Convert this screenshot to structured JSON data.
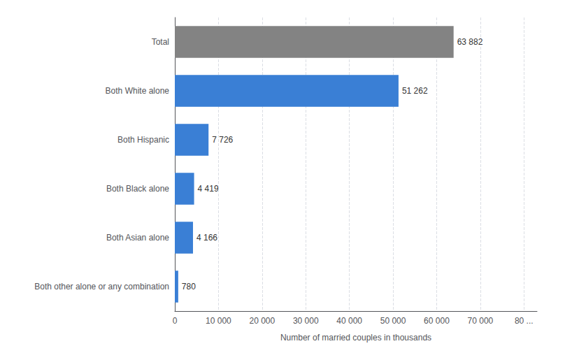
{
  "chart_data": {
    "type": "bar",
    "orientation": "horizontal",
    "xlabel": "Number of married couples in thousands",
    "categories": [
      "Both other alone or any combination",
      "Both Asian alone",
      "Both Black alone",
      "Both Hispanic",
      "Both White alone",
      "Total"
    ],
    "values": [
      780,
      4166,
      4419,
      7726,
      51262,
      63882
    ],
    "value_labels": [
      "780",
      "4 166",
      "4 419",
      "7 726",
      "51 262",
      "63 882"
    ],
    "colors": [
      "#3a7fd5",
      "#3a7fd5",
      "#3a7fd5",
      "#3a7fd5",
      "#3a7fd5",
      "#838383"
    ],
    "xlim": [
      0,
      83000
    ],
    "xticks": [
      0,
      {
        "value": 10000,
        "label": "10 000"
      },
      {
        "value": 20000,
        "label": "20 000"
      },
      {
        "value": 30000,
        "label": "30 000"
      },
      {
        "value": 40000,
        "label": "40 000"
      },
      {
        "value": 50000,
        "label": "50 000"
      },
      {
        "value": 60000,
        "label": "60 000"
      },
      {
        "value": 70000,
        "label": "70 000"
      },
      {
        "value": 80000,
        "label": "80 ..."
      }
    ],
    "grid": true,
    "data_labels": true
  }
}
